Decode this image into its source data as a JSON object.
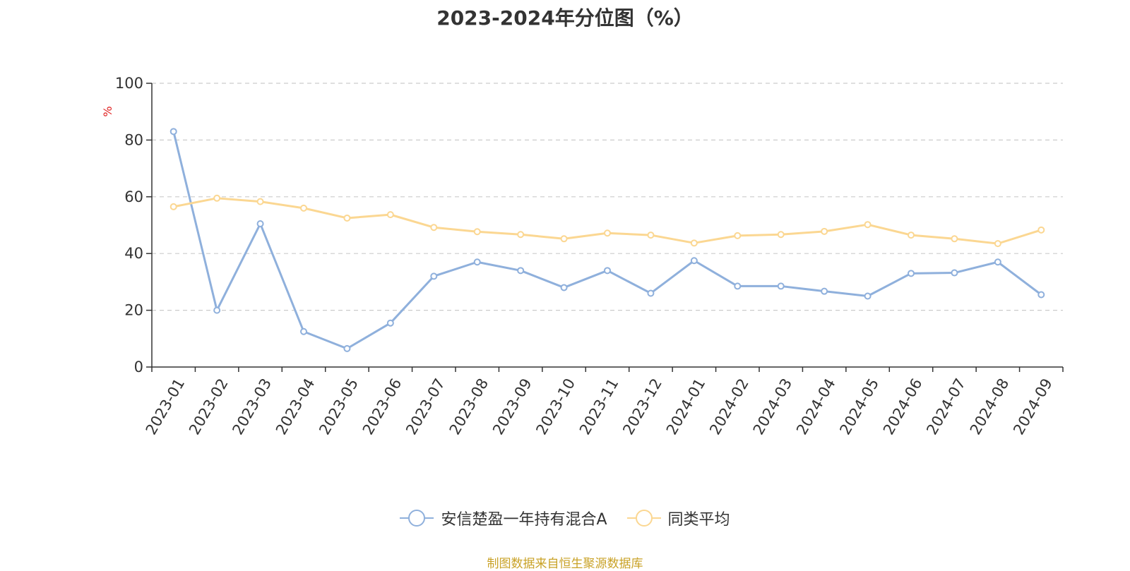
{
  "title": "2023-2024年分位图（%）",
  "source_note": "制图数据来自恒生聚源数据库",
  "colors": {
    "series1": "#8fb0dc",
    "series2": "#fbd792",
    "grid": "#cccccc",
    "axis": "#333333",
    "unit": "#e02020",
    "source": "#c9a227"
  },
  "chart_data": {
    "type": "line",
    "title": "2023-2024年分位图（%）",
    "ylabel": "%",
    "xlabel": "",
    "ylim": [
      0,
      100
    ],
    "yticks": [
      0,
      20,
      40,
      60,
      80,
      100
    ],
    "grid": true,
    "legend_position": "bottom",
    "categories": [
      "2023-01",
      "2023-02",
      "2023-03",
      "2023-04",
      "2023-05",
      "2023-06",
      "2023-07",
      "2023-08",
      "2023-09",
      "2023-10",
      "2023-11",
      "2023-12",
      "2024-01",
      "2024-02",
      "2024-03",
      "2024-04",
      "2024-05",
      "2024-06",
      "2024-07",
      "2024-08",
      "2024-09"
    ],
    "series": [
      {
        "name": "安信楚盈一年持有混合A",
        "color": "#8fb0dc",
        "values": [
          83,
          20,
          50.5,
          12.5,
          6.5,
          15.5,
          32,
          37,
          34,
          28,
          34,
          26,
          37.5,
          28.5,
          28.5,
          26.7,
          25,
          33,
          33.2,
          37,
          25.5
        ]
      },
      {
        "name": "同类平均",
        "color": "#fbd792",
        "values": [
          56.5,
          59.5,
          58.3,
          56,
          52.5,
          53.7,
          49.2,
          47.7,
          46.7,
          45.2,
          47.2,
          46.5,
          43.7,
          46.3,
          46.7,
          47.8,
          50.2,
          46.5,
          45.2,
          43.5,
          48.3
        ]
      }
    ]
  }
}
